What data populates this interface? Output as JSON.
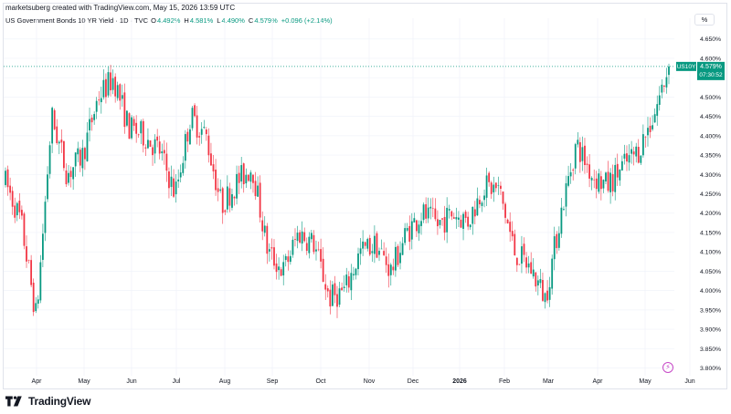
{
  "header": {
    "created_text": "marketsuberg created with TradingView.com, May 15, 2026 13:59 UTC",
    "instrument": "US Government Bonds 10 YR Yield · 1D · TVC",
    "ohlc": [
      {
        "label": "O",
        "value": "4.492%"
      },
      {
        "label": "H",
        "value": "4.581%"
      },
      {
        "label": "L",
        "value": "4.490%"
      },
      {
        "label": "C",
        "value": "4.579%"
      },
      {
        "label": "",
        "value": "+0.096 (+2.14%)"
      }
    ],
    "unit_label": "%"
  },
  "price_tag": {
    "symbol": "US10Y",
    "price": "4.579%",
    "countdown": "07:30:52",
    "color": "#089981"
  },
  "footer": {
    "brand": "TradingView"
  },
  "colors": {
    "up": "#089981",
    "down": "#f23645",
    "grid": "#f0f3fa",
    "text": "#131722"
  },
  "chart_data": {
    "type": "candlestick",
    "title": "US Government Bonds 10 YR Yield · 1D · TVC",
    "xlabel": "",
    "ylabel": "",
    "ylim": [
      3.78,
      4.68
    ],
    "y_ticks": [
      "3.800%",
      "3.850%",
      "3.900%",
      "3.950%",
      "4.000%",
      "4.050%",
      "4.100%",
      "4.150%",
      "4.200%",
      "4.250%",
      "4.300%",
      "4.350%",
      "4.400%",
      "4.450%",
      "4.500%",
      "4.550%",
      "4.600%",
      "4.650%"
    ],
    "x_ticks": [
      "Apr",
      "May",
      "Jun",
      "Jul",
      "Aug",
      "Sep",
      "Oct",
      "Nov",
      "Dec",
      "2026",
      "Feb",
      "Mar",
      "Apr",
      "May",
      "Jun"
    ],
    "last_price": 4.579,
    "monthly_path": [
      [
        "Mar",
        4.28
      ],
      [
        "Apr",
        4.18
      ],
      [
        "Apr",
        3.93
      ],
      [
        "Apr",
        4.45
      ],
      [
        "Apr",
        4.3
      ],
      [
        "May",
        4.35
      ],
      [
        "May",
        4.5
      ],
      [
        "May",
        4.55
      ],
      [
        "Jun",
        4.42
      ],
      [
        "Jun",
        4.4
      ],
      [
        "Jun",
        4.36
      ],
      [
        "Jul",
        4.25
      ],
      [
        "Jul",
        4.45
      ],
      [
        "Jul",
        4.4
      ],
      [
        "Aug",
        4.22
      ],
      [
        "Aug",
        4.28
      ],
      [
        "Aug",
        4.32
      ],
      [
        "Sep",
        4.1
      ],
      [
        "Sep",
        4.05
      ],
      [
        "Sep",
        4.15
      ],
      [
        "Oct",
        4.12
      ],
      [
        "Oct",
        3.98
      ],
      [
        "Oct",
        4.0
      ],
      [
        "Nov",
        4.1
      ],
      [
        "Nov",
        4.12
      ],
      [
        "Nov",
        4.05
      ],
      [
        "Dec",
        4.15
      ],
      [
        "Dec",
        4.2
      ],
      [
        "Dec",
        4.17
      ],
      [
        "2026",
        4.2
      ],
      [
        "2026",
        4.18
      ],
      [
        "2026",
        4.27
      ],
      [
        "Feb",
        4.26
      ],
      [
        "Feb",
        4.1
      ],
      [
        "Feb",
        4.06
      ],
      [
        "Mar",
        3.98
      ],
      [
        "Mar",
        4.2
      ],
      [
        "Mar",
        4.38
      ],
      [
        "Apr",
        4.3
      ],
      [
        "Apr",
        4.27
      ],
      [
        "Apr",
        4.32
      ],
      [
        "May",
        4.36
      ],
      [
        "May",
        4.45
      ],
      [
        "May",
        4.579
      ]
    ]
  }
}
